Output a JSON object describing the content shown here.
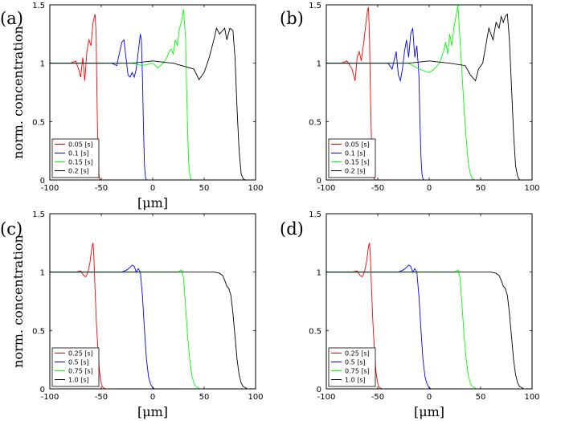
{
  "shared": {
    "ylabel": "norm. concentration",
    "xlabel_prefix": "[",
    "xlabel_unit": "μm",
    "xlabel_suffix": "]"
  },
  "chart_data": [
    {
      "panel_label": "(a)",
      "type": "line",
      "xlim": [
        -100,
        100
      ],
      "ylim": [
        0,
        1.5
      ],
      "xticks": [
        -100,
        -50,
        0,
        50,
        100
      ],
      "yticks": [
        0,
        0.5,
        1,
        1.5
      ],
      "ytick_labels": [
        "0",
        "0.5",
        "1",
        "1.5"
      ],
      "xlabel": "[μm]",
      "ylabel": "norm. concentration",
      "grid": false,
      "legend_position": "bottom-left",
      "series": [
        {
          "name": "0.05 [s]",
          "color": "#ff0000",
          "x": [
            -100,
            -80,
            -75,
            -72,
            -70,
            -68,
            -66,
            -64,
            -62,
            -60,
            -58,
            -56,
            -55,
            -54,
            -53,
            -52,
            -51,
            -50,
            -48,
            -40,
            -20,
            0,
            20,
            40,
            60,
            80,
            100
          ],
          "y": [
            1.0,
            1.0,
            1.02,
            0.95,
            0.88,
            1.05,
            0.85,
            1.1,
            1.2,
            1.15,
            1.35,
            1.42,
            1.25,
            0.6,
            0.15,
            0.02,
            0,
            0,
            0,
            0,
            0,
            0,
            0,
            0,
            0,
            0,
            0
          ]
        },
        {
          "name": "0.1 [s]",
          "color": "#0000ff",
          "x": [
            -100,
            -60,
            -40,
            -35,
            -30,
            -28,
            -26,
            -24,
            -22,
            -20,
            -18,
            -16,
            -14,
            -12,
            -11,
            -10,
            -9,
            -8,
            -7,
            -6,
            -4,
            0,
            20,
            40,
            60,
            80,
            100
          ],
          "y": [
            1.0,
            1.0,
            1.0,
            0.98,
            1.18,
            1.2,
            1.05,
            0.9,
            0.88,
            0.92,
            0.88,
            0.95,
            1.1,
            1.25,
            1.2,
            0.9,
            0.45,
            0.12,
            0.02,
            0,
            0,
            0,
            0,
            0,
            0,
            0,
            0
          ]
        },
        {
          "name": "0.15 [s]",
          "color": "#00ff00",
          "x": [
            -100,
            -40,
            -20,
            -10,
            0,
            5,
            10,
            14,
            16,
            18,
            20,
            22,
            24,
            26,
            28,
            30,
            32,
            33,
            34,
            35,
            36,
            37,
            38,
            40,
            60,
            80,
            100
          ],
          "y": [
            1.0,
            1.0,
            1.0,
            0.98,
            1.0,
            0.96,
            1.0,
            1.05,
            1.1,
            1.12,
            1.08,
            1.2,
            1.15,
            1.3,
            1.35,
            1.46,
            1.2,
            0.8,
            0.4,
            0.15,
            0.05,
            0.01,
            0,
            0,
            0,
            0,
            0
          ]
        },
        {
          "name": "0.2 [s]",
          "color": "#000000",
          "x": [
            -100,
            -40,
            -20,
            0,
            20,
            40,
            45,
            50,
            55,
            60,
            62,
            65,
            68,
            70,
            72,
            75,
            78,
            80,
            82,
            84,
            86,
            88,
            90,
            100
          ],
          "y": [
            1.0,
            1.0,
            1.0,
            1.02,
            1.0,
            0.95,
            0.86,
            0.92,
            1.05,
            1.22,
            1.3,
            1.25,
            1.28,
            1.3,
            1.2,
            1.3,
            1.28,
            1.05,
            0.6,
            0.25,
            0.05,
            0.01,
            0,
            0
          ]
        }
      ]
    },
    {
      "panel_label": "(b)",
      "type": "line",
      "xlim": [
        -100,
        100
      ],
      "ylim": [
        0,
        1.5
      ],
      "xticks": [
        -100,
        -50,
        0,
        50,
        100
      ],
      "yticks": [
        0,
        0.5,
        1,
        1.5
      ],
      "ytick_labels": [
        "0",
        "0.5",
        "1",
        "1.5"
      ],
      "xlabel": "",
      "ylabel": "",
      "grid": false,
      "legend_position": "bottom-left",
      "series": [
        {
          "name": "0.05 [s]",
          "color": "#ff0000",
          "x": [
            -100,
            -85,
            -80,
            -75,
            -72,
            -70,
            -68,
            -66,
            -64,
            -62,
            -60,
            -59,
            -58,
            -57,
            -56,
            -55,
            -54,
            -53,
            -52,
            -50,
            -40,
            0,
            40,
            100
          ],
          "y": [
            1.0,
            1.0,
            1.02,
            0.95,
            0.85,
            1.05,
            1.1,
            1.02,
            1.15,
            1.3,
            1.45,
            1.48,
            1.2,
            0.7,
            0.3,
            0.08,
            0.02,
            0,
            0,
            0,
            0,
            0,
            0,
            0
          ]
        },
        {
          "name": "0.1 [s]",
          "color": "#0000ff",
          "x": [
            -100,
            -60,
            -40,
            -36,
            -32,
            -30,
            -28,
            -26,
            -24,
            -22,
            -20,
            -18,
            -16,
            -14,
            -12,
            -10,
            -9,
            -8,
            -7,
            -6,
            -5,
            -3,
            0,
            40,
            100
          ],
          "y": [
            1.0,
            1.0,
            1.0,
            0.95,
            1.1,
            0.9,
            0.85,
            0.95,
            1.1,
            1.2,
            1.05,
            1.25,
            1.3,
            1.05,
            1.15,
            0.9,
            0.5,
            0.2,
            0.05,
            0.01,
            0,
            0,
            0,
            0,
            0
          ]
        },
        {
          "name": "0.15 [s]",
          "color": "#00ff00",
          "x": [
            -100,
            -20,
            -10,
            0,
            5,
            10,
            14,
            16,
            18,
            20,
            22,
            24,
            26,
            28,
            30,
            32,
            34,
            36,
            38,
            40,
            42,
            44,
            60,
            100
          ],
          "y": [
            1.0,
            1.0,
            0.95,
            0.92,
            0.95,
            1.0,
            1.1,
            1.18,
            1.08,
            1.25,
            1.15,
            1.3,
            1.4,
            1.5,
            1.2,
            0.9,
            0.6,
            0.35,
            0.15,
            0.05,
            0.01,
            0,
            0,
            0
          ]
        },
        {
          "name": "0.2 [s]",
          "color": "#000000",
          "x": [
            -100,
            -20,
            0,
            20,
            35,
            40,
            45,
            48,
            52,
            55,
            58,
            60,
            62,
            65,
            68,
            70,
            72,
            74,
            76,
            78,
            80,
            82,
            84,
            86,
            88,
            100
          ],
          "y": [
            1.0,
            1.0,
            1.02,
            1.0,
            0.98,
            0.9,
            0.85,
            0.95,
            1.0,
            1.15,
            1.3,
            1.25,
            1.2,
            1.35,
            1.3,
            1.4,
            1.35,
            1.4,
            1.42,
            1.2,
            0.8,
            0.4,
            0.12,
            0.03,
            0,
            0
          ]
        }
      ]
    },
    {
      "panel_label": "(c)",
      "type": "line",
      "xlim": [
        -100,
        100
      ],
      "ylim": [
        0,
        1.5
      ],
      "xticks": [
        -100,
        -50,
        0,
        50,
        100
      ],
      "yticks": [
        0,
        0.5,
        1,
        1.5
      ],
      "ytick_labels": [
        "0",
        "0.5",
        "1",
        "1.5"
      ],
      "xlabel": "[μm]",
      "ylabel": "norm. concentration",
      "grid": false,
      "legend_position": "bottom-left",
      "series": [
        {
          "name": "0.25 [s]",
          "color": "#ff0000",
          "x": [
            -100,
            -75,
            -70,
            -67,
            -65,
            -63,
            -61,
            -59,
            -58,
            -57,
            -56,
            -55,
            -54,
            -53,
            -52,
            -51,
            -50,
            -49,
            -48,
            -46,
            -40,
            0,
            100
          ],
          "y": [
            1.0,
            1.0,
            1.01,
            0.97,
            0.96,
            1.0,
            1.08,
            1.22,
            1.25,
            1.1,
            0.85,
            0.62,
            0.45,
            0.3,
            0.18,
            0.1,
            0.05,
            0.02,
            0.01,
            0,
            0,
            0,
            0
          ]
        },
        {
          "name": "0.5 [s]",
          "color": "#0000ff",
          "x": [
            -100,
            -30,
            -25,
            -22,
            -20,
            -18,
            -16,
            -14,
            -12,
            -10,
            -8,
            -6,
            -4,
            -2,
            0,
            2,
            4,
            10,
            100
          ],
          "y": [
            1.0,
            1.0,
            1.02,
            1.04,
            1.06,
            1.05,
            1.0,
            1.03,
            1.0,
            0.8,
            0.5,
            0.25,
            0.1,
            0.04,
            0.01,
            0,
            0,
            0,
            0
          ]
        },
        {
          "name": "0.75 [s]",
          "color": "#00ff00",
          "x": [
            -100,
            0,
            10,
            20,
            25,
            28,
            30,
            32,
            34,
            36,
            38,
            40,
            42,
            44,
            46,
            50,
            100
          ],
          "y": [
            1.0,
            1.0,
            1.0,
            1.0,
            1.0,
            1.02,
            0.95,
            0.7,
            0.45,
            0.25,
            0.12,
            0.05,
            0.02,
            0.01,
            0,
            0,
            0
          ]
        },
        {
          "name": "1.0 [s]",
          "color": "#000000",
          "x": [
            -100,
            50,
            60,
            65,
            68,
            70,
            72,
            74,
            76,
            78,
            80,
            82,
            84,
            86,
            88,
            90,
            92,
            100
          ],
          "y": [
            1.0,
            1.0,
            1.0,
            0.99,
            0.97,
            0.93,
            0.88,
            0.86,
            0.8,
            0.65,
            0.45,
            0.25,
            0.12,
            0.05,
            0.02,
            0.01,
            0,
            0
          ]
        }
      ]
    },
    {
      "panel_label": "(d)",
      "type": "line",
      "xlim": [
        -100,
        100
      ],
      "ylim": [
        0,
        1.5
      ],
      "xticks": [
        -100,
        -50,
        0,
        50,
        100
      ],
      "yticks": [
        0,
        0.5,
        1,
        1.5
      ],
      "ytick_labels": [
        "0",
        "0.5",
        "1",
        "1.5"
      ],
      "xlabel": "[μm]",
      "ylabel": "",
      "grid": false,
      "legend_position": "bottom-left",
      "series": [
        {
          "name": "0.25 [s]",
          "color": "#ff0000",
          "x": [
            -100,
            -75,
            -70,
            -67,
            -65,
            -63,
            -61,
            -59,
            -58,
            -57,
            -56,
            -55,
            -54,
            -53,
            -52,
            -51,
            -50,
            -49,
            -48,
            -46,
            -40,
            0,
            100
          ],
          "y": [
            1.0,
            1.0,
            1.01,
            0.97,
            0.96,
            1.0,
            1.08,
            1.22,
            1.25,
            1.1,
            0.85,
            0.62,
            0.45,
            0.3,
            0.18,
            0.1,
            0.05,
            0.02,
            0.01,
            0,
            0,
            0,
            0
          ]
        },
        {
          "name": "0.5 [s]",
          "color": "#0000ff",
          "x": [
            -100,
            -30,
            -25,
            -22,
            -20,
            -18,
            -16,
            -14,
            -12,
            -10,
            -8,
            -6,
            -4,
            -2,
            0,
            2,
            4,
            10,
            100
          ],
          "y": [
            1.0,
            1.0,
            1.02,
            1.04,
            1.06,
            1.05,
            1.0,
            1.03,
            1.0,
            0.8,
            0.5,
            0.25,
            0.1,
            0.04,
            0.01,
            0,
            0,
            0,
            0
          ]
        },
        {
          "name": "0.75 [s]",
          "color": "#00ff00",
          "x": [
            -100,
            0,
            10,
            20,
            25,
            28,
            30,
            32,
            34,
            36,
            38,
            40,
            42,
            44,
            46,
            50,
            100
          ],
          "y": [
            1.0,
            1.0,
            1.0,
            1.0,
            1.0,
            1.02,
            0.95,
            0.7,
            0.45,
            0.25,
            0.12,
            0.05,
            0.02,
            0.01,
            0,
            0,
            0
          ]
        },
        {
          "name": "1.0 [s]",
          "color": "#000000",
          "x": [
            -100,
            50,
            60,
            65,
            68,
            70,
            72,
            74,
            76,
            78,
            80,
            82,
            84,
            86,
            88,
            90,
            92,
            100
          ],
          "y": [
            1.0,
            1.0,
            1.0,
            0.99,
            0.97,
            0.93,
            0.88,
            0.86,
            0.8,
            0.65,
            0.45,
            0.25,
            0.12,
            0.05,
            0.02,
            0.01,
            0,
            0
          ]
        }
      ]
    }
  ]
}
